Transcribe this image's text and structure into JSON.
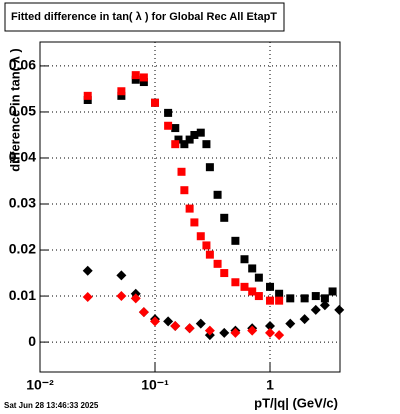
{
  "chart_data": {
    "type": "scatter",
    "title": "Fitted difference in tan( λ ) for Global Rec All EtapT",
    "x_label": "pT/|q| (GeV/c)",
    "y_label": "difference in tan( λ )",
    "date": "Sat Jun 28 13:46:33 2025",
    "log_x": true,
    "grid": true,
    "xlim": [
      0.01,
      4.06
    ],
    "ylim": [
      -0.0065,
      0.0652
    ],
    "xticks": [
      {
        "value": 0.01,
        "label": "10⁻²"
      },
      {
        "value": 0.1,
        "label": "10⁻¹"
      },
      1
    ],
    "yticks": [
      0,
      0.01,
      0.02,
      0.03,
      0.04,
      0.05,
      0.06
    ],
    "series": [
      {
        "marker": "square",
        "color": "#000000",
        "x": [
          0.026,
          0.051,
          0.068,
          0.08,
          0.1,
          0.13,
          0.15,
          0.16,
          0.18,
          0.2,
          0.22,
          0.25,
          0.28,
          0.3,
          0.35,
          0.4,
          0.5,
          0.6,
          0.7,
          0.8,
          1.0,
          1.2,
          1.5,
          2.0,
          2.5,
          3.0,
          3.5
        ],
        "values": [
          0.0526,
          0.0535,
          0.057,
          0.0565,
          0.052,
          0.0498,
          0.0465,
          0.044,
          0.043,
          0.044,
          0.045,
          0.0455,
          0.043,
          0.038,
          0.032,
          0.027,
          0.022,
          0.018,
          0.016,
          0.014,
          0.012,
          0.0105,
          0.0095,
          0.0095,
          0.01,
          0.0095,
          0.011
        ]
      },
      {
        "marker": "square",
        "color": "#ff0000",
        "x": [
          0.026,
          0.051,
          0.068,
          0.08,
          0.1,
          0.13,
          0.15,
          0.17,
          0.18,
          0.2,
          0.22,
          0.25,
          0.28,
          0.3,
          0.35,
          0.4,
          0.5,
          0.6,
          0.7,
          0.8,
          1.0,
          1.2
        ],
        "values": [
          0.0535,
          0.0545,
          0.058,
          0.0575,
          0.052,
          0.047,
          0.043,
          0.037,
          0.033,
          0.029,
          0.026,
          0.023,
          0.021,
          0.019,
          0.017,
          0.015,
          0.013,
          0.012,
          0.011,
          0.01,
          0.009,
          0.009
        ]
      },
      {
        "marker": "diamond",
        "color": "#000000",
        "x": [
          0.026,
          0.051,
          0.068,
          0.08,
          0.1,
          0.13,
          0.15,
          0.2,
          0.25,
          0.3,
          0.4,
          0.5,
          0.7,
          1.0,
          1.5,
          2.0,
          2.5,
          3.0,
          4.0
        ],
        "values": [
          0.0155,
          0.0145,
          0.0105,
          0.0065,
          0.005,
          0.0045,
          0.0035,
          0.003,
          0.004,
          0.0015,
          0.002,
          0.0025,
          0.003,
          0.0035,
          0.004,
          0.005,
          0.007,
          0.008,
          0.007
        ]
      },
      {
        "marker": "diamond",
        "color": "#ff0000",
        "x": [
          0.026,
          0.051,
          0.068,
          0.08,
          0.1,
          0.15,
          0.2,
          0.3,
          0.5,
          0.7,
          1.0,
          1.2
        ],
        "values": [
          0.0098,
          0.01,
          0.0095,
          0.0065,
          0.0045,
          0.0035,
          0.003,
          0.0025,
          0.002,
          0.0025,
          0.002,
          0.0015
        ]
      }
    ]
  }
}
